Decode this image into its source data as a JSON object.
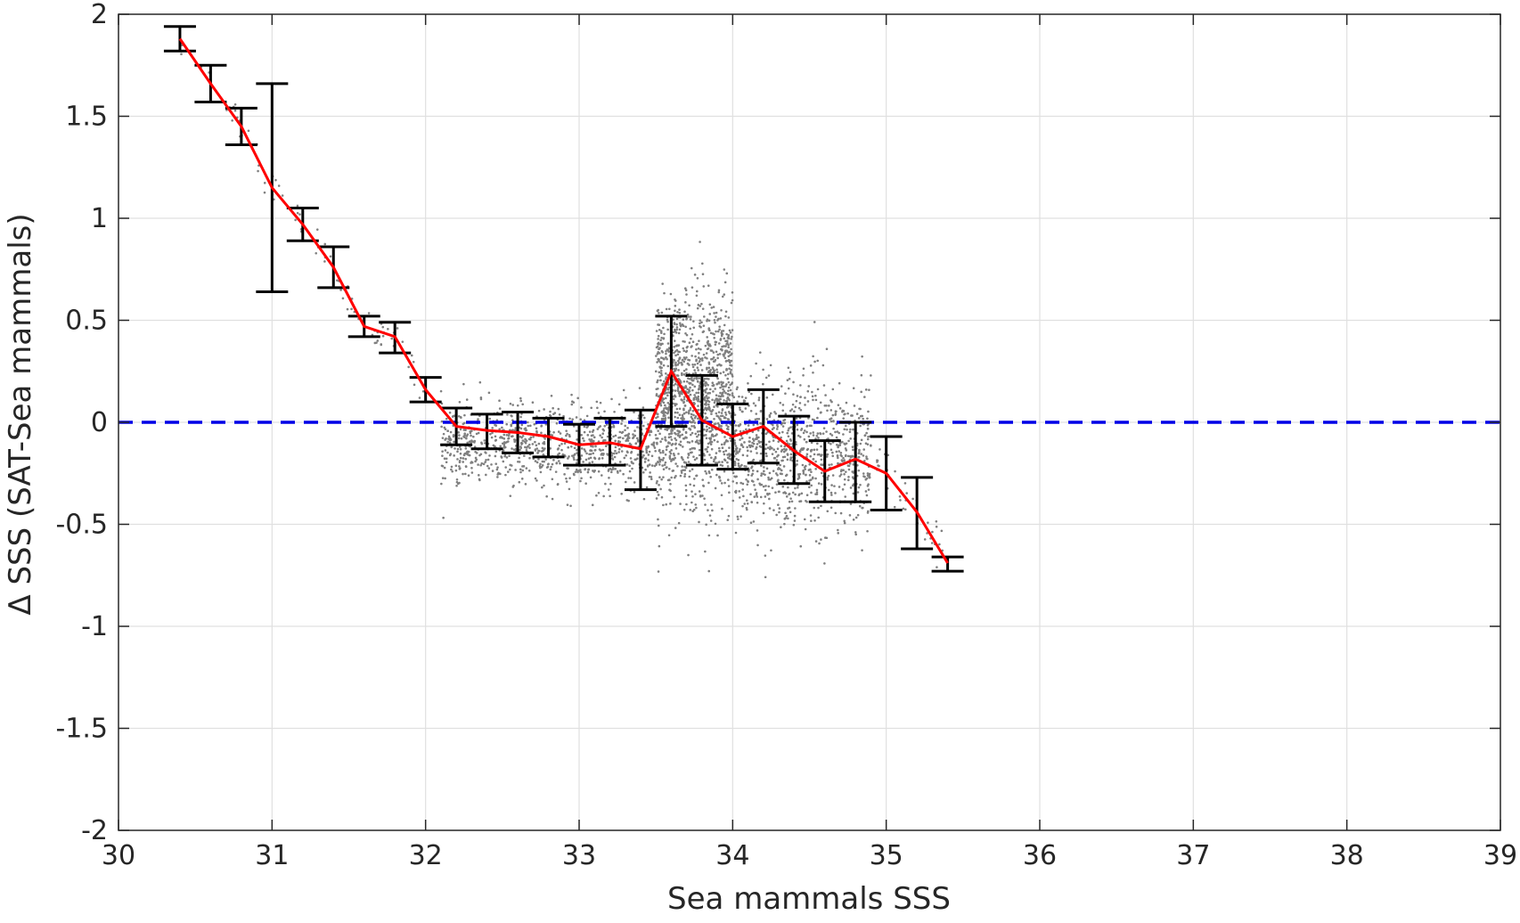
{
  "chart_data": {
    "type": "scatter",
    "title": "",
    "xlabel": "Sea mammals SSS",
    "ylabel": "Δ SSS (SAT-Sea mammals)",
    "xlim": [
      30,
      39
    ],
    "ylim": [
      -2,
      2
    ],
    "xticks": [
      30,
      31,
      32,
      33,
      34,
      35,
      36,
      37,
      38,
      39
    ],
    "yticks": [
      -2,
      -1.5,
      -1,
      -0.5,
      0,
      0.5,
      1,
      1.5,
      2
    ],
    "xtick_labels": [
      "30",
      "31",
      "32",
      "33",
      "34",
      "35",
      "36",
      "37",
      "38",
      "39"
    ],
    "ytick_labels": [
      "-2",
      "-1.5",
      "-1",
      "-0.5",
      "0",
      "0.5",
      "1",
      "1.5",
      "2"
    ],
    "grid": true,
    "legend": "none",
    "colors": {
      "scatter": "#808080",
      "mean_line": "#ff0000",
      "error_bars": "#000000",
      "zero_line": "#0000e6",
      "grid": "#e0e0e0",
      "axes": "#262626"
    },
    "reference_line": {
      "y": 0,
      "style": "dashed"
    },
    "scatter_clusters": [
      {
        "x_range": [
          30.4,
          32.0
        ],
        "center_fn": "mean",
        "spread": 0.04,
        "count": 90
      },
      {
        "x_range": [
          32.1,
          33.5
        ],
        "y_center": -0.12,
        "spread": 0.1,
        "count": 900
      },
      {
        "x_range": [
          33.5,
          34.0
        ],
        "y_center": 0.1,
        "spread": 0.25,
        "count": 1300
      },
      {
        "x_range": [
          34.0,
          34.9
        ],
        "y_center": -0.15,
        "spread": 0.18,
        "count": 900
      },
      {
        "x_range": [
          34.9,
          35.4
        ],
        "center_fn": "mean",
        "spread": 0.06,
        "count": 40
      }
    ],
    "series": [
      {
        "x": [
          30.4,
          30.6,
          30.8,
          31.0,
          31.2,
          31.4,
          31.6,
          31.8,
          32.0,
          32.2,
          32.4,
          32.6,
          32.8,
          33.0,
          33.2,
          33.4,
          33.6,
          33.8,
          34.0,
          34.2,
          34.4,
          34.6,
          34.8,
          35.0,
          35.2,
          35.4
        ],
        "mean": [
          1.88,
          1.66,
          1.45,
          1.15,
          0.97,
          0.76,
          0.47,
          0.42,
          0.16,
          -0.02,
          -0.04,
          -0.05,
          -0.07,
          -0.11,
          -0.1,
          -0.13,
          0.25,
          0.01,
          -0.07,
          -0.02,
          -0.14,
          -0.24,
          -0.18,
          -0.25,
          -0.44,
          -0.69
        ],
        "lower": [
          1.82,
          1.57,
          1.36,
          0.64,
          0.89,
          0.66,
          0.42,
          0.34,
          0.1,
          -0.11,
          -0.13,
          -0.15,
          -0.17,
          -0.21,
          -0.21,
          -0.33,
          -0.02,
          -0.21,
          -0.23,
          -0.2,
          -0.3,
          -0.39,
          -0.39,
          -0.43,
          -0.62,
          -0.73
        ],
        "upper": [
          1.94,
          1.75,
          1.54,
          1.66,
          1.05,
          0.86,
          0.52,
          0.49,
          0.22,
          0.07,
          0.04,
          0.05,
          0.02,
          -0.01,
          0.02,
          0.06,
          0.52,
          0.23,
          0.09,
          0.16,
          0.03,
          -0.09,
          0.0,
          -0.07,
          -0.27,
          -0.66
        ]
      }
    ]
  }
}
